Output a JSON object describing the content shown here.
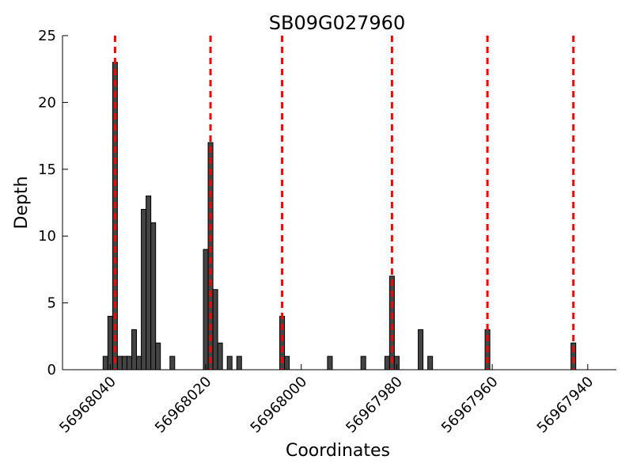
{
  "chart_data": {
    "type": "bar",
    "title": "SB09G027960",
    "xlabel": "Coordinates",
    "ylabel": "Depth",
    "x_reversed": true,
    "xlim": [
      56968050,
      56967934
    ],
    "ylim": [
      0,
      25
    ],
    "x_ticks": [
      56968040,
      56968020,
      56968000,
      56967980,
      56967960,
      56967940
    ],
    "y_ticks": [
      0,
      5,
      10,
      15,
      20,
      25
    ],
    "grid": false,
    "bar_color": "#444444",
    "line_color": "#ff0000",
    "bars": [
      {
        "x": 56968041,
        "y": 1
      },
      {
        "x": 56968040,
        "y": 4
      },
      {
        "x": 56968039,
        "y": 23
      },
      {
        "x": 56968038,
        "y": 1
      },
      {
        "x": 56968037,
        "y": 1
      },
      {
        "x": 56968036,
        "y": 1
      },
      {
        "x": 56968035,
        "y": 3
      },
      {
        "x": 56968034,
        "y": 1
      },
      {
        "x": 56968033,
        "y": 12
      },
      {
        "x": 56968032,
        "y": 13
      },
      {
        "x": 56968031,
        "y": 11
      },
      {
        "x": 56968030,
        "y": 2
      },
      {
        "x": 56968027,
        "y": 1
      },
      {
        "x": 56968020,
        "y": 9
      },
      {
        "x": 56968019,
        "y": 17
      },
      {
        "x": 56968018,
        "y": 6
      },
      {
        "x": 56968017,
        "y": 2
      },
      {
        "x": 56968015,
        "y": 1
      },
      {
        "x": 56968013,
        "y": 1
      },
      {
        "x": 56968004,
        "y": 4
      },
      {
        "x": 56968003,
        "y": 1
      },
      {
        "x": 56967994,
        "y": 1
      },
      {
        "x": 56967987,
        "y": 1
      },
      {
        "x": 56967982,
        "y": 1
      },
      {
        "x": 56967981,
        "y": 7
      },
      {
        "x": 56967980,
        "y": 1
      },
      {
        "x": 56967975,
        "y": 3
      },
      {
        "x": 56967973,
        "y": 1
      },
      {
        "x": 56967961,
        "y": 3
      },
      {
        "x": 56967943,
        "y": 2
      }
    ],
    "vlines": [
      56968039,
      56968019,
      56968004,
      56967981,
      56967961,
      56967943
    ]
  }
}
